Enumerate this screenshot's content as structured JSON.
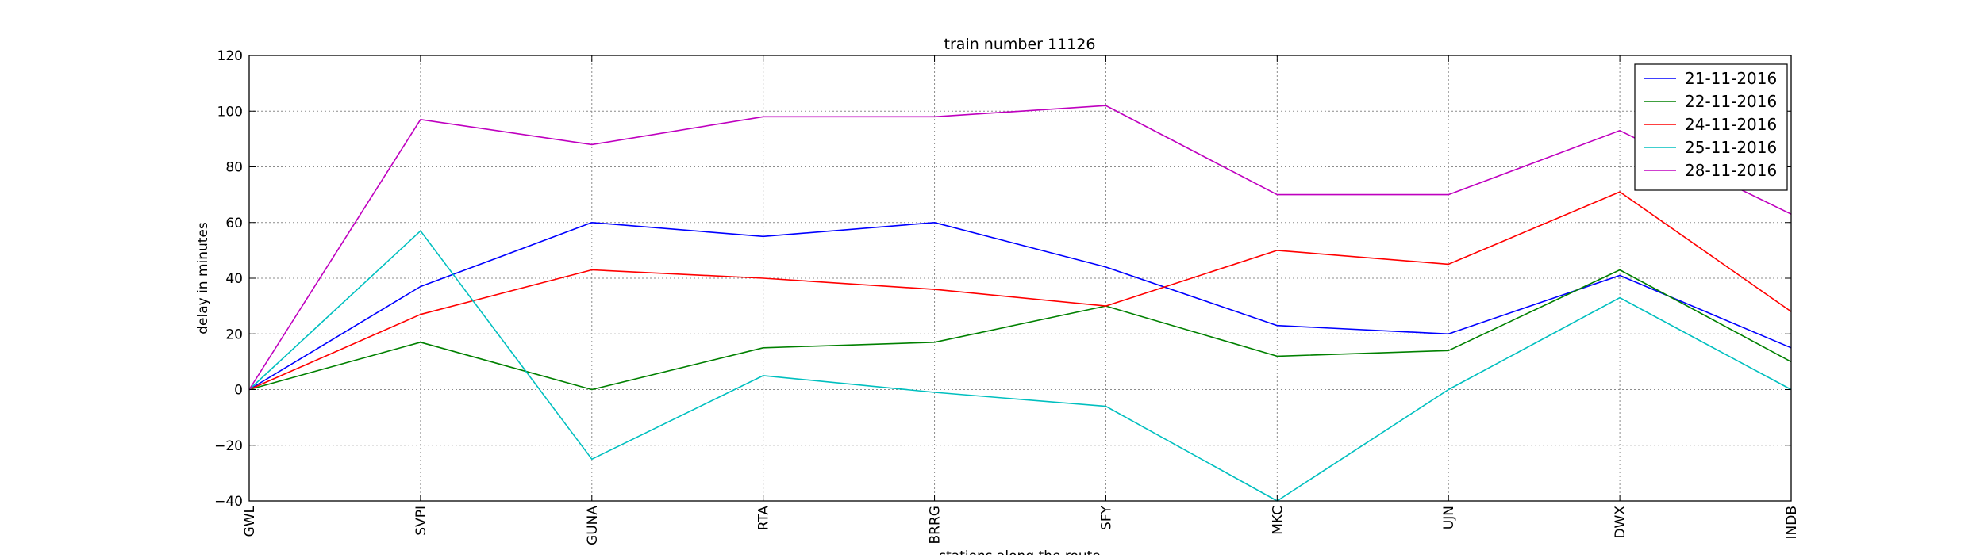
{
  "chart_data": {
    "type": "line",
    "title": "train number 11126",
    "xlabel": "stations along the route",
    "ylabel": "delay in minutes",
    "categories": [
      "GWL",
      "SVPI",
      "GUNA",
      "RTA",
      "BRRG",
      "SFY",
      "MKC",
      "UJN",
      "DWX",
      "INDB"
    ],
    "ylim": [
      -40,
      120
    ],
    "yticks": [
      -40,
      -20,
      0,
      20,
      40,
      60,
      80,
      100,
      120
    ],
    "ytick_labels": [
      "−40",
      "−20",
      "0",
      "20",
      "40",
      "60",
      "80",
      "100",
      "120"
    ],
    "grid": true,
    "legend_position": "top-right",
    "series": [
      {
        "name": "21-11-2016",
        "color": "#0000ff",
        "values": [
          0,
          37,
          60,
          55,
          60,
          44,
          23,
          20,
          41,
          15
        ]
      },
      {
        "name": "22-11-2016",
        "color": "#008000",
        "values": [
          0,
          17,
          0,
          15,
          17,
          30,
          12,
          14,
          43,
          10
        ]
      },
      {
        "name": "24-11-2016",
        "color": "#ff0000",
        "values": [
          0,
          27,
          43,
          40,
          36,
          30,
          50,
          45,
          71,
          28
        ]
      },
      {
        "name": "25-11-2016",
        "color": "#00bfbf",
        "values": [
          0,
          57,
          -25,
          5,
          -1,
          -6,
          -40,
          0,
          33,
          0
        ]
      },
      {
        "name": "28-11-2016",
        "color": "#bf00bf",
        "values": [
          0,
          97,
          88,
          98,
          98,
          102,
          70,
          70,
          93,
          63
        ]
      }
    ]
  }
}
